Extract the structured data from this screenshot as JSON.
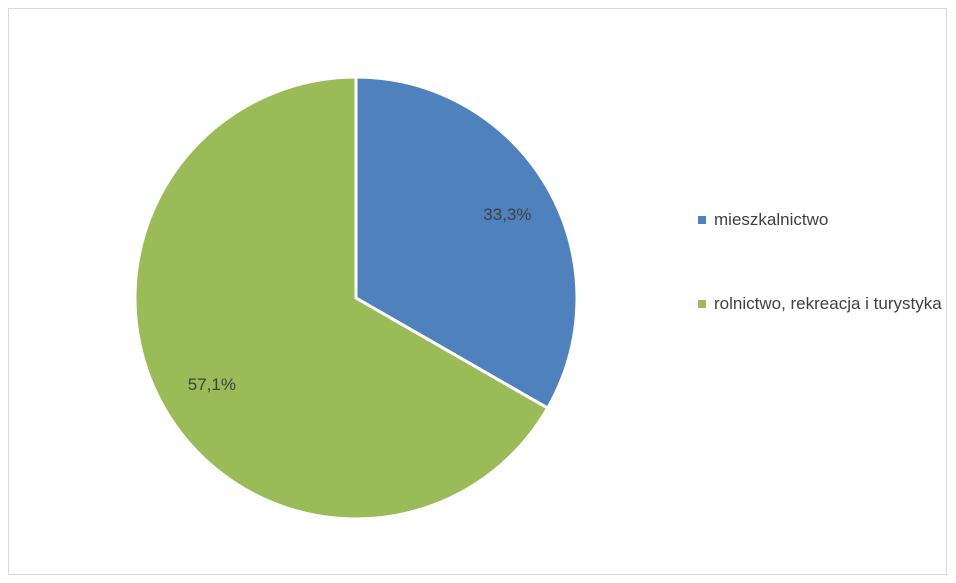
{
  "chart_data": {
    "type": "pie",
    "series": [
      {
        "values": [
          33.3,
          57.1
        ],
        "labels": [
          "33,3%",
          "57,1%"
        ]
      }
    ],
    "categories": [
      "mieszkalnictwo",
      "rolnictwo, rekreacja i turystyka"
    ],
    "colors": [
      "#4f81bd",
      "#9bbb59"
    ],
    "start_angle_deg": 0,
    "direction": "clockwise",
    "legend_position": "right"
  }
}
